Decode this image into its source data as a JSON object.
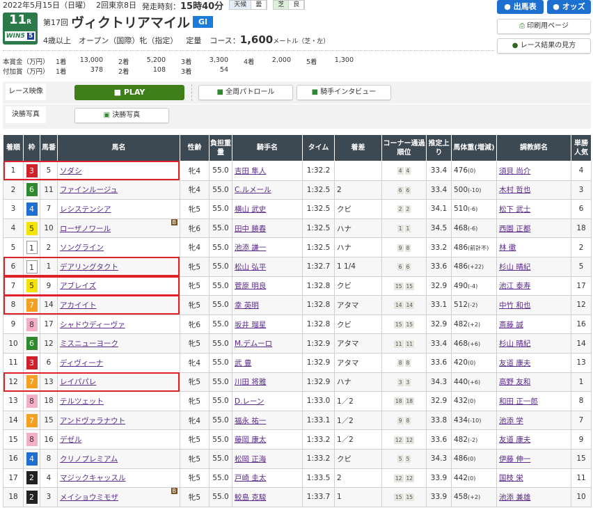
{
  "header": {
    "date": "2022年5月15日（日曜）",
    "meeting": "2回東京8日",
    "post_label": "発走時刻：",
    "post_time": "15時40分",
    "weather_label": "天候",
    "weather": "曇",
    "track_label": "芝",
    "track": "良",
    "race_num": "11",
    "race_suffix": "R",
    "win5": "WIN5",
    "win5_num": "5",
    "edition": "第17回",
    "race_name": "ヴィクトリアマイル",
    "grade": "GI",
    "conditions": "4歳以上　オープン（国際）牝（指定）",
    "weight_rule": "定量",
    "course_label": "コース：",
    "distance": "1,600",
    "distance_unit": "メートル（芝・左）"
  },
  "prize": {
    "main_label": "本賞金（万円）",
    "main": [
      [
        "1着",
        "13,000"
      ],
      [
        "2着",
        "5,200"
      ],
      [
        "3着",
        "3,300"
      ],
      [
        "4着",
        "2,000"
      ],
      [
        "5着",
        "1,300"
      ]
    ],
    "extra_label": "付加賞（万円）",
    "extra": [
      [
        "1着",
        "378"
      ],
      [
        "2着",
        "108"
      ],
      [
        "3着",
        "54"
      ]
    ]
  },
  "nav": {
    "entries": "出馬表",
    "odds": "オッズ",
    "print": "印刷用ページ",
    "guide": "レース結果の見方"
  },
  "media": {
    "video_label": "レース映像",
    "play": "PLAY",
    "patrol": "全周パトロール",
    "interview": "騎手インタビュー",
    "photo_label": "決勝写真",
    "photo": "決勝写真"
  },
  "colors": {
    "waku": {
      "1": "#ffffff",
      "2": "#222222",
      "3": "#d0202a",
      "4": "#1f6fd0",
      "5": "#f5e400",
      "6": "#2f8a2f",
      "7": "#f5a020",
      "8": "#f5b0c8"
    },
    "highlight": "#e0202a",
    "header_bg": "#3c4852"
  },
  "columns": [
    "着順",
    "枠",
    "馬番",
    "馬名",
    "性齢",
    "負担重量",
    "騎手名",
    "タイム",
    "着差",
    "コーナー通過順位",
    "推定上り",
    "馬体重(増減)",
    "調教師名",
    "単勝人気"
  ],
  "rows": [
    [
      "1",
      "3",
      "5",
      "ソダシ",
      "牝4",
      "55.0",
      "吉田 隼人",
      "1:32.2",
      "",
      "4",
      "4",
      "33.4",
      "476",
      "(0)",
      "須貝 尚介",
      "4",
      true,
      false
    ],
    [
      "2",
      "6",
      "11",
      "ファインルージュ",
      "牝4",
      "55.0",
      "C.ルメール",
      "1:32.5",
      "2",
      "6",
      "6",
      "33.4",
      "500",
      "(-10)",
      "木村 哲也",
      "3",
      false,
      false
    ],
    [
      "3",
      "4",
      "7",
      "レシステンシア",
      "牝5",
      "55.0",
      "横山 武史",
      "1:32.5",
      "クビ",
      "2",
      "2",
      "34.1",
      "510",
      "(-6)",
      "松下 武士",
      "6",
      false,
      false
    ],
    [
      "4",
      "5",
      "10",
      "ローザノワール",
      "牝6",
      "55.0",
      "田中 勝春",
      "1:32.5",
      "ハナ",
      "1",
      "1",
      "34.5",
      "468",
      "(-6)",
      "西園 正都",
      "18",
      false,
      true
    ],
    [
      "5",
      "1",
      "2",
      "ソングライン",
      "牝4",
      "55.0",
      "池添 謙一",
      "1:32.5",
      "ハナ",
      "9",
      "8",
      "33.2",
      "486",
      "(前計不)",
      "林 徹",
      "2",
      false,
      false
    ],
    [
      "6",
      "1",
      "1",
      "デアリングタクト",
      "牝5",
      "55.0",
      "松山 弘平",
      "1:32.7",
      "1 1/4",
      "6",
      "6",
      "33.6",
      "486",
      "(+22)",
      "杉山 晴紀",
      "5",
      true,
      false
    ],
    [
      "7",
      "5",
      "9",
      "アブレイズ",
      "牝5",
      "55.0",
      "菅原 明良",
      "1:32.8",
      "クビ",
      "15",
      "15",
      "32.9",
      "490",
      "(-4)",
      "池江 泰寿",
      "17",
      true,
      false
    ],
    [
      "8",
      "7",
      "14",
      "アカイイト",
      "牝5",
      "55.0",
      "幸 英明",
      "1:32.8",
      "アタマ",
      "14",
      "14",
      "33.1",
      "512",
      "(-2)",
      "中竹 和也",
      "12",
      true,
      false
    ],
    [
      "9",
      "8",
      "17",
      "シャドウディーヴァ",
      "牝6",
      "55.0",
      "坂井 瑠星",
      "1:32.8",
      "クビ",
      "15",
      "15",
      "32.9",
      "482",
      "(+2)",
      "斎藤 誠",
      "16",
      false,
      false
    ],
    [
      "10",
      "6",
      "12",
      "ミスニューヨーク",
      "牝5",
      "55.0",
      "M.デムーロ",
      "1:32.9",
      "アタマ",
      "11",
      "11",
      "33.4",
      "468",
      "(+6)",
      "杉山 晴紀",
      "14",
      false,
      false
    ],
    [
      "11",
      "3",
      "6",
      "ディヴィーナ",
      "牝4",
      "55.0",
      "武 豊",
      "1:32.9",
      "アタマ",
      "8",
      "8",
      "33.6",
      "420",
      "(0)",
      "友道 康夫",
      "13",
      false,
      false
    ],
    [
      "12",
      "7",
      "13",
      "レイパパレ",
      "牝5",
      "55.0",
      "川田 将雅",
      "1:32.9",
      "ハナ",
      "3",
      "3",
      "34.3",
      "440",
      "(+6)",
      "高野 友和",
      "1",
      true,
      false
    ],
    [
      "13",
      "8",
      "18",
      "テルツェット",
      "牝5",
      "55.0",
      "D.レーン",
      "1:33.0",
      "1／2",
      "18",
      "18",
      "32.9",
      "432",
      "(0)",
      "和田 正一郎",
      "8",
      false,
      false
    ],
    [
      "14",
      "7",
      "15",
      "アンドヴァラナウト",
      "牝4",
      "55.0",
      "福永 祐一",
      "1:33.1",
      "1／2",
      "9",
      "8",
      "33.8",
      "434",
      "(-10)",
      "池添 学",
      "7",
      false,
      false
    ],
    [
      "15",
      "8",
      "16",
      "デゼル",
      "牝5",
      "55.0",
      "藤岡 康太",
      "1:33.2",
      "1／2",
      "12",
      "12",
      "33.6",
      "482",
      "(-2)",
      "友道 康夫",
      "9",
      false,
      false
    ],
    [
      "16",
      "4",
      "8",
      "クリノプレミアム",
      "牝5",
      "55.0",
      "松岡 正海",
      "1:33.2",
      "クビ",
      "5",
      "5",
      "34.3",
      "486",
      "(0)",
      "伊藤 伸一",
      "15",
      false,
      false
    ],
    [
      "17",
      "2",
      "4",
      "マジックキャッスル",
      "牝5",
      "55.0",
      "戸崎 圭太",
      "1:33.5",
      "2",
      "12",
      "12",
      "33.9",
      "442",
      "(0)",
      "国枝 栄",
      "11",
      false,
      false
    ],
    [
      "18",
      "2",
      "3",
      "メイショウミモザ",
      "牝5",
      "55.0",
      "鮫島 克駿",
      "1:33.7",
      "1",
      "15",
      "15",
      "33.9",
      "458",
      "(+2)",
      "池添 兼雄",
      "10",
      false,
      true
    ]
  ],
  "blinker": "B"
}
